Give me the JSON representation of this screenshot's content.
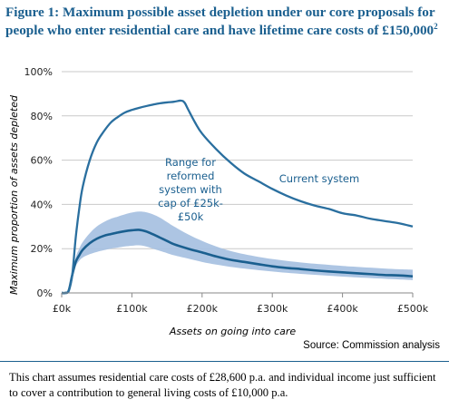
{
  "figure": {
    "title": "Figure 1: Maximum possible asset depletion under our core proposals for people who enter residential care and have lifetime care costs of £150,000",
    "title_footnote_mark": "2",
    "source": "Source: Commission analysis"
  },
  "footnote": "This chart assumes residential care costs of £28,600 p.a. and individual income just sufficient to cover a contribution to general living costs of £10,000 p.a.",
  "colors": {
    "title": "#1a5f8f",
    "current_line": "#2a6f9f",
    "reformed_line": "#1a5f8f",
    "range_band": "#a9c2e2",
    "grid": "#c9c9c9"
  },
  "chart_data": {
    "type": "line",
    "title": "Figure 1: Maximum possible asset depletion under our core proposals for people who enter residential care and have lifetime care costs of £150,000",
    "xlabel": "Assets on going into care",
    "ylabel": "Maximum proportion of assets depleted",
    "xlim": [
      0,
      500000
    ],
    "ylim": [
      0,
      100
    ],
    "grid": true,
    "x_ticks": [
      0,
      100000,
      200000,
      300000,
      400000,
      500000
    ],
    "x_tick_labels": [
      "£0k",
      "£100k",
      "£200k",
      "£300k",
      "£400k",
      "£500k"
    ],
    "y_ticks": [
      0,
      20,
      40,
      60,
      80,
      100
    ],
    "y_tick_labels": [
      "0%",
      "20%",
      "40%",
      "60%",
      "80%",
      "100%"
    ],
    "annotations": [
      {
        "text_lines": [
          "Current system"
        ],
        "near_series": "current"
      },
      {
        "text_lines": [
          "Range for",
          "reformed",
          "system with",
          "cap of £25k-",
          "£50k"
        ],
        "near_series": "reformed"
      }
    ],
    "series": [
      {
        "key": "current",
        "x": [
          0,
          5000,
          10000,
          15000,
          20000,
          25000,
          30000,
          40000,
          50000,
          60000,
          70000,
          80000,
          90000,
          100000,
          110000,
          120000,
          130000,
          140000,
          150000,
          160000,
          170000,
          175000,
          180000,
          190000,
          200000,
          220000,
          240000,
          260000,
          280000,
          300000,
          320000,
          340000,
          360000,
          380000,
          400000,
          420000,
          440000,
          460000,
          480000,
          500000
        ],
        "values": [
          0,
          0,
          1,
          8,
          25,
          38,
          48,
          60,
          68,
          73,
          77,
          79.5,
          81.5,
          82.7,
          83.6,
          84.4,
          85.1,
          85.7,
          86.1,
          86.4,
          86.9,
          86,
          83,
          77,
          72,
          65,
          59,
          54,
          50.5,
          47,
          44,
          41.5,
          39.5,
          38,
          36,
          35,
          33.5,
          32.5,
          31.5,
          30
        ]
      },
      {
        "key": "reformed",
        "x": [
          0,
          5000,
          10000,
          15000,
          20000,
          25000,
          30000,
          40000,
          50000,
          60000,
          70000,
          80000,
          90000,
          100000,
          110000,
          120000,
          130000,
          140000,
          150000,
          160000,
          180000,
          200000,
          220000,
          240000,
          260000,
          280000,
          300000,
          320000,
          340000,
          360000,
          380000,
          400000,
          420000,
          440000,
          460000,
          480000,
          500000
        ],
        "values": [
          0,
          0,
          1,
          8,
          14,
          17,
          19.5,
          22.5,
          24.5,
          25.8,
          26.6,
          27.3,
          27.9,
          28.3,
          28.5,
          27.8,
          26.5,
          25,
          23.5,
          22,
          20,
          18.3,
          16.5,
          15,
          14,
          13,
          12,
          11.3,
          10.8,
          10.2,
          9.7,
          9.3,
          8.9,
          8.5,
          8.1,
          7.9,
          7.5
        ]
      },
      {
        "key": "range_upper",
        "x": [
          0,
          5000,
          10000,
          15000,
          20000,
          25000,
          30000,
          40000,
          50000,
          60000,
          70000,
          80000,
          90000,
          100000,
          110000,
          120000,
          130000,
          140000,
          150000,
          160000,
          180000,
          200000,
          220000,
          240000,
          260000,
          280000,
          300000,
          320000,
          340000,
          360000,
          380000,
          400000,
          420000,
          440000,
          460000,
          480000,
          500000
        ],
        "values": [
          0,
          0,
          1,
          8,
          16,
          20,
          23,
          27,
          30,
          32,
          33.5,
          34.5,
          35.5,
          36.3,
          36.8,
          36.5,
          35.5,
          34,
          32,
          30,
          26.5,
          23.5,
          21,
          19,
          17.5,
          16.3,
          15.3,
          14.5,
          13.8,
          13.2,
          12.7,
          12.2,
          11.8,
          11.4,
          11,
          10.7,
          10.5
        ]
      },
      {
        "key": "range_lower",
        "x": [
          0,
          5000,
          10000,
          15000,
          20000,
          25000,
          30000,
          40000,
          50000,
          60000,
          70000,
          80000,
          90000,
          100000,
          110000,
          120000,
          130000,
          140000,
          150000,
          160000,
          180000,
          200000,
          220000,
          240000,
          260000,
          280000,
          300000,
          320000,
          340000,
          360000,
          380000,
          400000,
          420000,
          440000,
          460000,
          480000,
          500000
        ],
        "values": [
          0,
          0,
          1,
          7,
          12,
          14.5,
          16,
          17.5,
          18.5,
          19.3,
          20,
          20.5,
          21,
          21.3,
          21.5,
          21,
          20,
          19,
          18,
          17,
          15.5,
          14,
          12.8,
          11.8,
          11,
          10.3,
          9.7,
          9.1,
          8.6,
          8.2,
          7.8,
          7.4,
          7,
          6.7,
          6.4,
          6.1,
          5.8
        ]
      }
    ]
  }
}
